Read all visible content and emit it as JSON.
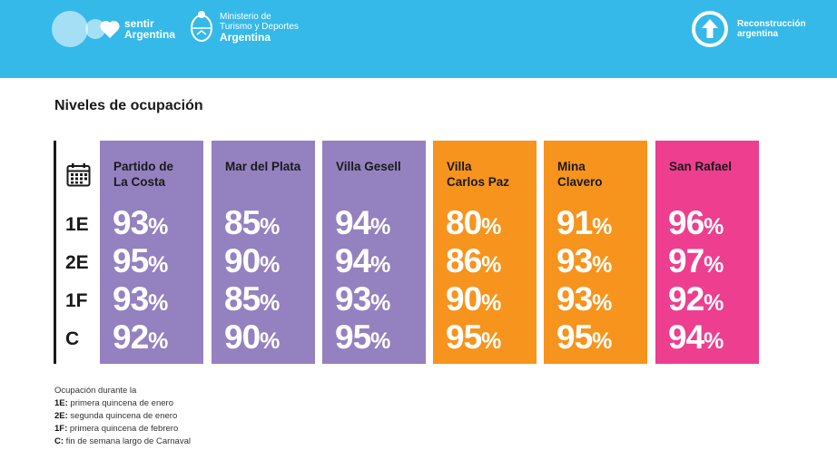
{
  "header": {
    "sentir": [
      "sentir",
      "Argentina"
    ],
    "ministerio": [
      "Ministerio de",
      "Turismo y Deportes",
      "Argentina"
    ],
    "reconstruccion": [
      "Reconstrucción",
      "argentina"
    ]
  },
  "title": "Niveles de ocupación",
  "rows": [
    "1E",
    "2E",
    "1F",
    "C"
  ],
  "colors": {
    "header": "#35b9e9",
    "purple": "#9481c0",
    "orange": "#f7941d",
    "pink": "#ee3e8f"
  },
  "cards": [
    {
      "name": "Partido de\nLa Costa",
      "color": "#9481c0",
      "values": [
        "93",
        "95",
        "93",
        "92"
      ]
    },
    {
      "name": "Mar del Plata",
      "color": "#9481c0",
      "values": [
        "85",
        "90",
        "85",
        "90"
      ]
    },
    {
      "name": "Villa Gesell",
      "color": "#9481c0",
      "values": [
        "94",
        "94",
        "93",
        "95"
      ]
    },
    {
      "name": "Villa\nCarlos Paz",
      "color": "#f7941d",
      "values": [
        "80",
        "86",
        "90",
        "95"
      ]
    },
    {
      "name": "Mina\nClavero",
      "color": "#f7941d",
      "values": [
        "91",
        "93",
        "93",
        "95"
      ]
    },
    {
      "name": "San Rafael",
      "color": "#ee3e8f",
      "values": [
        "96",
        "97",
        "92",
        "94"
      ]
    }
  ],
  "percent_sign": "%",
  "footnote": {
    "intro": "Ocupación durante la",
    "items": [
      {
        "key": "1E:",
        "text": " primera quincena de enero"
      },
      {
        "key": "2E:",
        "text": " segunda quincena de enero"
      },
      {
        "key": "1F:",
        "text": " primera quincena de febrero"
      },
      {
        "key": "C:",
        "text": " fin de semana largo de Carnaval"
      }
    ]
  },
  "icons": [
    "calendar-icon",
    "heart-icon",
    "shield-icon",
    "arrow-up-circle-icon"
  ]
}
